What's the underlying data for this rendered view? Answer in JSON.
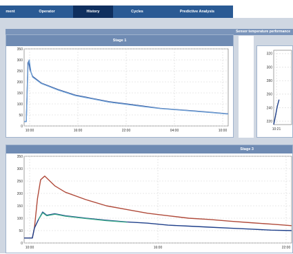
{
  "nav": {
    "tabs": [
      {
        "label": "ment"
      },
      {
        "label": "Operator"
      },
      {
        "label": "History"
      },
      {
        "label": "Cycles"
      },
      {
        "label": "Predictive Analysis"
      }
    ],
    "active_index": 2
  },
  "section": {
    "title": "Sensor temperature performance"
  },
  "panels": {
    "stage1": {
      "title": "Stage 1"
    },
    "stage3": {
      "title": "Stage 3"
    }
  },
  "chart_data": [
    {
      "type": "line",
      "title": "Stage 1",
      "yticks": [
        0,
        50,
        100,
        150,
        200,
        250,
        300,
        350
      ],
      "xticks": [
        "10:00",
        "16:00",
        "22:00",
        "04:00",
        "10:00"
      ],
      "ylim": [
        0,
        350
      ],
      "grid": true,
      "series": [
        {
          "color": "#1e3f8a",
          "x": [
            0,
            0.25,
            0.35,
            0.45,
            0.55,
            0.7,
            1,
            2,
            3,
            4,
            6,
            8,
            10,
            12,
            14,
            16,
            18,
            20,
            22,
            24
          ],
          "y": [
            20,
            20,
            150,
            285,
            295,
            255,
            225,
            195,
            180,
            165,
            140,
            125,
            110,
            100,
            90,
            80,
            74,
            68,
            62,
            55
          ]
        },
        {
          "color": "#6fa0d6",
          "x": [
            0,
            0.25,
            0.35,
            0.45,
            0.6,
            0.8,
            1,
            2,
            3,
            4,
            6,
            8,
            10,
            12,
            14,
            16,
            18,
            20,
            22,
            24
          ],
          "y": [
            20,
            20,
            140,
            270,
            300,
            245,
            222,
            193,
            178,
            163,
            138,
            123,
            108,
            98,
            88,
            79,
            73,
            67,
            61,
            54
          ]
        }
      ]
    },
    {
      "type": "line",
      "yticks": [
        220,
        240,
        260,
        280,
        300,
        320
      ],
      "xticks": [
        "10:21"
      ],
      "ylim": [
        215,
        325
      ],
      "grid": true,
      "series": [
        {
          "color": "#1e3f8a",
          "x": [
            0,
            1,
            2,
            3
          ],
          "y": [
            215,
            228,
            242,
            252
          ]
        }
      ]
    },
    {
      "type": "line",
      "title": "Stage 3",
      "yticks": [
        0,
        50,
        100,
        150,
        200,
        250,
        300,
        350
      ],
      "xticks": [
        "10:00",
        "16:00",
        "22:00"
      ],
      "ylim": [
        0,
        350
      ],
      "grid": true,
      "series": [
        {
          "color": "#b04a3a",
          "x": [
            0,
            0.8,
            1.0,
            1.3,
            1.6,
            2.0,
            2.5,
            3,
            4,
            6,
            8,
            10,
            12,
            14,
            16,
            18,
            20,
            22,
            24,
            26
          ],
          "y": [
            20,
            20,
            60,
            180,
            255,
            270,
            250,
            230,
            205,
            175,
            150,
            135,
            120,
            110,
            100,
            95,
            88,
            82,
            76,
            70
          ]
        },
        {
          "color": "#1e3f8a",
          "x": [
            0,
            0.8,
            1.0,
            1.4,
            1.8,
            2.2,
            3,
            4,
            6,
            8,
            10,
            12,
            14,
            16,
            18,
            20,
            22,
            24,
            26
          ],
          "y": [
            20,
            20,
            60,
            95,
            125,
            112,
            118,
            110,
            100,
            92,
            85,
            80,
            72,
            68,
            64,
            60,
            56,
            52,
            50
          ]
        },
        {
          "color": "#3aa88a",
          "x": [
            1.4,
            1.8,
            2.2,
            3,
            4,
            6,
            8,
            10
          ],
          "y": [
            95,
            122,
            110,
            116,
            108,
            99,
            90,
            84
          ]
        }
      ]
    }
  ]
}
